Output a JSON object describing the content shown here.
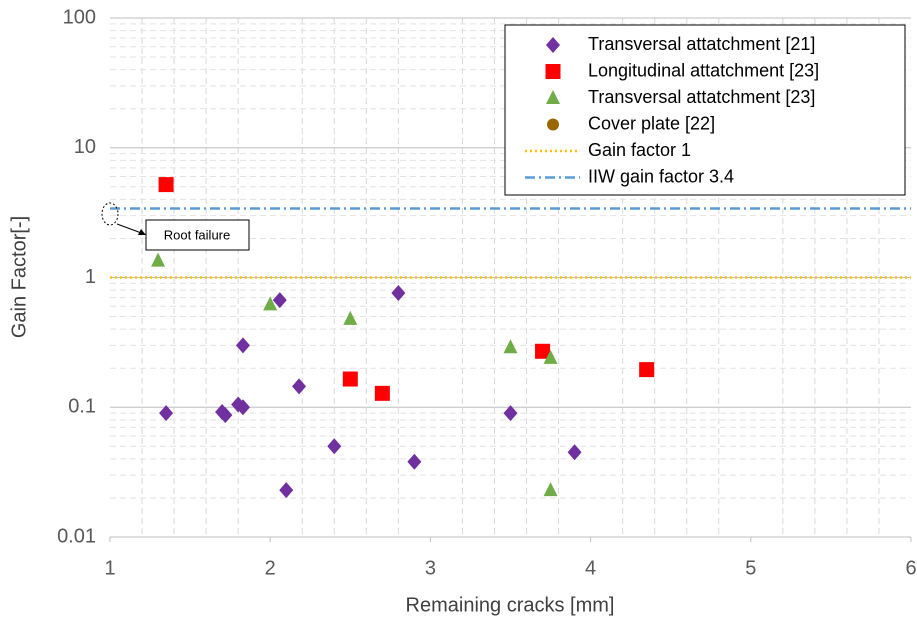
{
  "chart_data": {
    "type": "scatter",
    "x_label": "Remaining cracks [mm]",
    "y_label": "Gain Factor[-]",
    "xlim": [
      1,
      6
    ],
    "xticks": [
      1,
      2,
      3,
      4,
      5,
      6
    ],
    "ylim": [
      0.01,
      100
    ],
    "yticks": [
      0.01,
      0.1,
      1,
      10,
      100
    ],
    "y_log": true,
    "grid": true,
    "legend": "upper right",
    "series": [
      {
        "name": "Transversal attatchment [21]",
        "color": "#7030a0",
        "marker": "diamond",
        "x": [
          1.35,
          1.7,
          1.72,
          1.8,
          1.83,
          1.83,
          2.06,
          2.1,
          2.18,
          2.4,
          2.8,
          2.9,
          3.5,
          3.9
        ],
        "values": [
          0.09,
          0.092,
          0.087,
          0.105,
          0.1,
          0.3,
          0.67,
          0.023,
          0.145,
          0.05,
          0.76,
          0.038,
          0.09,
          0.045
        ]
      },
      {
        "name": "Longitudinal attatchment [23]",
        "color": "#ff0000",
        "marker": "square",
        "x": [
          1.35,
          2.5,
          2.7,
          3.7,
          4.35
        ],
        "values": [
          5.2,
          0.165,
          0.128,
          0.27,
          0.195
        ]
      },
      {
        "name": "Transversal attatchment [23]",
        "color": "#70ad47",
        "marker": "triangle",
        "x": [
          1.3,
          2.0,
          2.5,
          3.5,
          3.75,
          3.75
        ],
        "values": [
          1.35,
          0.62,
          0.48,
          0.29,
          0.24,
          0.023
        ]
      },
      {
        "name": "Cover plate [22]",
        "color": "#996600",
        "marker": "circle",
        "x": [],
        "values": []
      }
    ],
    "reference_lines": [
      {
        "name": "Gain factor 1",
        "value": 1,
        "color": "#ffc000",
        "style": "dotted"
      },
      {
        "name": "IIW gain factor 3.4",
        "value": 3.4,
        "color": "#5b9bd5",
        "style": "dashdot"
      }
    ],
    "annotation": "Root failure"
  }
}
